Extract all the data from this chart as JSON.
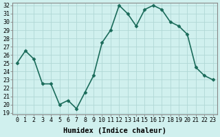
{
  "x": [
    0,
    1,
    2,
    3,
    4,
    5,
    6,
    7,
    8,
    9,
    10,
    11,
    12,
    13,
    14,
    15,
    16,
    17,
    18,
    19,
    20,
    21,
    22,
    23
  ],
  "y": [
    25,
    26.5,
    25.5,
    22.5,
    22.5,
    20,
    20.5,
    19.5,
    21.5,
    23.5,
    27.5,
    29,
    32,
    31,
    29.5,
    31.5,
    32,
    31.5,
    30,
    29.5,
    28.5,
    24.5,
    23.5,
    23.0
  ],
  "line_color": "#1a6b5a",
  "marker": "D",
  "marker_size": 2.5,
  "bg_color": "#d0f0ee",
  "grid_color": "#b0d8d5",
  "xlabel": "Humidex (Indice chaleur)",
  "ylim_min": 18.8,
  "ylim_max": 32.3,
  "xlim_min": -0.5,
  "xlim_max": 23.5,
  "yticks": [
    19,
    20,
    21,
    22,
    23,
    24,
    25,
    26,
    27,
    28,
    29,
    30,
    31,
    32
  ],
  "xticks": [
    0,
    1,
    2,
    3,
    4,
    5,
    6,
    7,
    8,
    9,
    10,
    11,
    12,
    13,
    14,
    15,
    16,
    17,
    18,
    19,
    20,
    21,
    22,
    23
  ],
  "xlabel_fontsize": 7.5,
  "tick_fontsize": 6.0,
  "line_width": 1.2
}
